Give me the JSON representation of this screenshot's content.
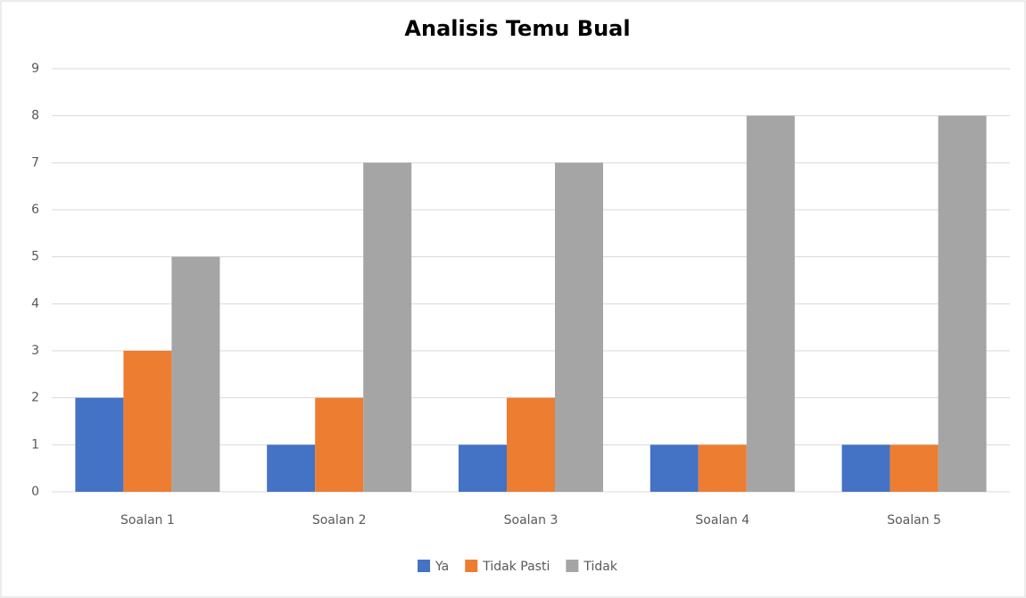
{
  "chart_data": {
    "type": "bar",
    "title": "Analisis Temu Bual",
    "categories": [
      "Soalan 1",
      "Soalan 2",
      "Soalan 3",
      "Soalan 4",
      "Soalan 5"
    ],
    "series": [
      {
        "name": "Ya",
        "color": "#4472c4",
        "values": [
          2,
          1,
          1,
          1,
          1
        ]
      },
      {
        "name": "Tidak Pasti",
        "color": "#ed7d31",
        "values": [
          3,
          2,
          2,
          1,
          1
        ]
      },
      {
        "name": "Tidak",
        "color": "#a5a5a5",
        "values": [
          5,
          7,
          7,
          8,
          8
        ]
      }
    ],
    "ylim": [
      0,
      9
    ],
    "yticks": [
      0,
      1,
      2,
      3,
      4,
      5,
      6,
      7,
      8,
      9
    ],
    "grid": true,
    "legend": "bottom"
  }
}
